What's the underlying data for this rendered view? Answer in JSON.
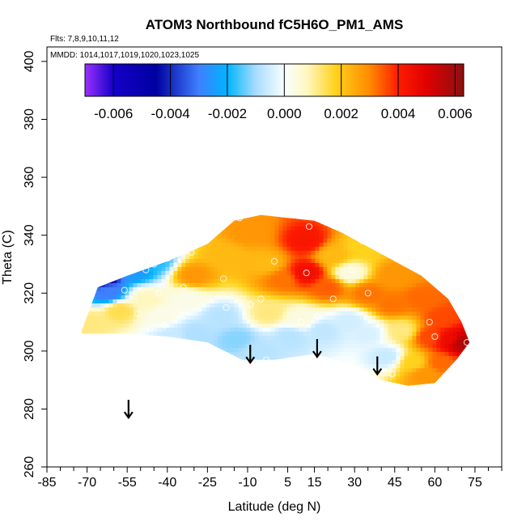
{
  "chart_data": {
    "type": "heatmap",
    "title": "ATOM3 Northbound fC5H6O_PM1_AMS",
    "subtitle_flights": "Flts: 7,8,9,10,11,12",
    "subtitle_dates": "MMDD: 1014,1017,1019,1020,1023,1025",
    "xlabel": "Latitude (deg N)",
    "ylabel": "Theta (C)",
    "xlim": [
      -85,
      85
    ],
    "ylim": [
      260,
      405
    ],
    "x_ticks": [
      -85,
      -70,
      -55,
      -40,
      -25,
      -10,
      5,
      15,
      30,
      45,
      60,
      75
    ],
    "x_tick_labels": [
      "-85",
      "-70",
      "-55",
      "-40",
      "-25",
      "-10",
      "5",
      "15",
      "30",
      "45",
      "60",
      "75"
    ],
    "y_ticks": [
      260,
      280,
      300,
      320,
      340,
      360,
      380,
      400
    ],
    "y_tick_labels": [
      "260",
      "280",
      "300",
      "320",
      "340",
      "360",
      "380",
      "400"
    ],
    "colorbar": {
      "range": [
        -0.007,
        0.0063
      ],
      "ticks": [
        -0.006,
        -0.004,
        -0.002,
        0.0,
        0.002,
        0.004,
        0.006
      ],
      "tick_labels": [
        "-0.006",
        "-0.004",
        "-0.002",
        "0.000",
        "0.002",
        "0.004",
        "0.006"
      ],
      "stops": [
        {
          "v": -0.007,
          "color": "#9b30ff"
        },
        {
          "v": -0.006,
          "color": "#1500c8"
        },
        {
          "v": -0.0045,
          "color": "#0000a0"
        },
        {
          "v": -0.003,
          "color": "#3f7fff"
        },
        {
          "v": -0.002,
          "color": "#00b4ff"
        },
        {
          "v": -0.001,
          "color": "#a8dcff"
        },
        {
          "v": 0.0,
          "color": "#f8ffff"
        },
        {
          "v": 0.0008,
          "color": "#fff7c0"
        },
        {
          "v": 0.0018,
          "color": "#ffd21c"
        },
        {
          "v": 0.003,
          "color": "#ff8a00"
        },
        {
          "v": 0.004,
          "color": "#ff1c00"
        },
        {
          "v": 0.005,
          "color": "#e00000"
        },
        {
          "v": 0.0063,
          "color": "#8b1010"
        }
      ]
    },
    "arrows": [
      {
        "lat": -54.5,
        "theta": 277
      },
      {
        "lat": -9,
        "theta": 296
      },
      {
        "lat": 16,
        "theta": 298
      },
      {
        "lat": 38.5,
        "theta": 292
      }
    ],
    "domain_envelope": {
      "top": [
        [
          -72,
          307
        ],
        [
          -66,
          322
        ],
        [
          -55,
          326
        ],
        [
          -40,
          331
        ],
        [
          -25,
          337
        ],
        [
          -15,
          345
        ],
        [
          -5,
          347
        ],
        [
          5,
          346
        ],
        [
          15,
          345
        ],
        [
          25,
          341
        ],
        [
          35,
          336
        ],
        [
          45,
          331
        ],
        [
          55,
          326
        ],
        [
          65,
          318
        ],
        [
          70,
          310
        ],
        [
          73,
          303
        ]
      ],
      "bottom": [
        [
          73,
          303
        ],
        [
          68,
          297
        ],
        [
          60,
          289
        ],
        [
          50,
          288
        ],
        [
          40,
          290
        ],
        [
          30,
          295
        ],
        [
          15,
          299
        ],
        [
          0,
          297
        ],
        [
          -12,
          297
        ],
        [
          -25,
          303
        ],
        [
          -40,
          305
        ],
        [
          -55,
          306
        ],
        [
          -72,
          306
        ]
      ]
    },
    "field_nodes": [
      {
        "lat": -65,
        "theta": 326,
        "value": -0.0055
      },
      {
        "lat": -62,
        "theta": 320,
        "value": -0.003
      },
      {
        "lat": -52,
        "theta": 328,
        "value": -0.0025
      },
      {
        "lat": -45,
        "theta": 331,
        "value": -0.0018
      },
      {
        "lat": -68,
        "theta": 310,
        "value": 0.0012
      },
      {
        "lat": -58,
        "theta": 314,
        "value": 0.0015
      },
      {
        "lat": -48,
        "theta": 318,
        "value": 0.0008
      },
      {
        "lat": -42,
        "theta": 312,
        "value": 0.0003
      },
      {
        "lat": -32,
        "theta": 318,
        "value": 0.0003
      },
      {
        "lat": -30,
        "theta": 326,
        "value": 0.0028
      },
      {
        "lat": -38,
        "theta": 305,
        "value": -0.0006
      },
      {
        "lat": -30,
        "theta": 306,
        "value": -0.0009
      },
      {
        "lat": -20,
        "theta": 312,
        "value": -0.0008
      },
      {
        "lat": -14,
        "theta": 304,
        "value": -0.0012
      },
      {
        "lat": -6,
        "theta": 300,
        "value": -0.0008
      },
      {
        "lat": -2,
        "theta": 313,
        "value": 0.0012
      },
      {
        "lat": 6,
        "theta": 305,
        "value": -0.0008
      },
      {
        "lat": 10,
        "theta": 311,
        "value": 0.0004
      },
      {
        "lat": 18,
        "theta": 307,
        "value": -0.0007
      },
      {
        "lat": 28,
        "theta": 310,
        "value": -0.0005
      },
      {
        "lat": 35,
        "theta": 306,
        "value": -0.0004
      },
      {
        "lat": 42,
        "theta": 298,
        "value": -0.0006
      },
      {
        "lat": 48,
        "theta": 307,
        "value": 0.0012
      },
      {
        "lat": 52,
        "theta": 296,
        "value": 0.0018
      },
      {
        "lat": -18,
        "theta": 333,
        "value": 0.0022
      },
      {
        "lat": -10,
        "theta": 341,
        "value": 0.0028
      },
      {
        "lat": -3,
        "theta": 330,
        "value": 0.0022
      },
      {
        "lat": 3,
        "theta": 325,
        "value": 0.0032
      },
      {
        "lat": 12,
        "theta": 338,
        "value": 0.0042
      },
      {
        "lat": 12,
        "theta": 327,
        "value": 0.0045
      },
      {
        "lat": 20,
        "theta": 322,
        "value": 0.0034
      },
      {
        "lat": 22,
        "theta": 333,
        "value": 0.0022
      },
      {
        "lat": 28,
        "theta": 327,
        "value": 0.0004
      },
      {
        "lat": 33,
        "theta": 336,
        "value": 0.0018
      },
      {
        "lat": 35,
        "theta": 320,
        "value": 0.0032
      },
      {
        "lat": 45,
        "theta": 326,
        "value": 0.0028
      },
      {
        "lat": 44,
        "theta": 316,
        "value": 0.0032
      },
      {
        "lat": 55,
        "theta": 318,
        "value": 0.0033
      },
      {
        "lat": 58,
        "theta": 305,
        "value": 0.0036
      },
      {
        "lat": 63,
        "theta": 311,
        "value": 0.0036
      },
      {
        "lat": 66,
        "theta": 304,
        "value": 0.0046
      },
      {
        "lat": 70,
        "theta": 303,
        "value": 0.0058
      },
      {
        "lat": 62,
        "theta": 296,
        "value": 0.0033
      },
      {
        "lat": 56,
        "theta": 292,
        "value": 0.0028
      }
    ],
    "sample_points": [
      {
        "lat": -63,
        "theta": 325
      },
      {
        "lat": -56,
        "theta": 321
      },
      {
        "lat": -51,
        "theta": 313
      },
      {
        "lat": -48,
        "theta": 328
      },
      {
        "lat": -45,
        "theta": 330
      },
      {
        "lat": -43,
        "theta": 320
      },
      {
        "lat": -41,
        "theta": 309
      },
      {
        "lat": -40,
        "theta": 332
      },
      {
        "lat": -34,
        "theta": 322
      },
      {
        "lat": -31,
        "theta": 334
      },
      {
        "lat": -19,
        "theta": 325
      },
      {
        "lat": -18,
        "theta": 315
      },
      {
        "lat": -13,
        "theta": 346
      },
      {
        "lat": -9,
        "theta": 316
      },
      {
        "lat": -5,
        "theta": 318
      },
      {
        "lat": -3,
        "theta": 297
      },
      {
        "lat": 0,
        "theta": 331
      },
      {
        "lat": 12,
        "theta": 327
      },
      {
        "lat": 13,
        "theta": 343
      },
      {
        "lat": 10,
        "theta": 310
      },
      {
        "lat": 16,
        "theta": 312
      },
      {
        "lat": 22,
        "theta": 318
      },
      {
        "lat": 29,
        "theta": 328
      },
      {
        "lat": 33,
        "theta": 338
      },
      {
        "lat": 35,
        "theta": 320
      },
      {
        "lat": 44,
        "theta": 292
      },
      {
        "lat": 58,
        "theta": 310
      },
      {
        "lat": 60,
        "theta": 305
      },
      {
        "lat": 72,
        "theta": 303
      }
    ]
  }
}
